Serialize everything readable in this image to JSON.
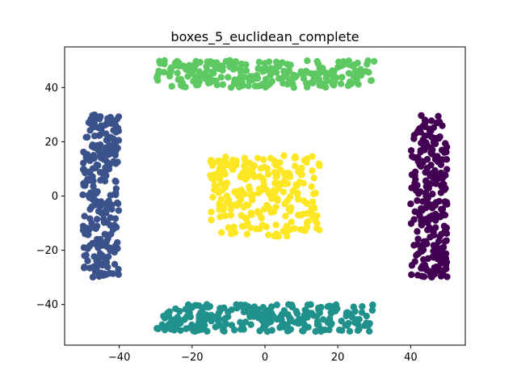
{
  "chart_data": {
    "type": "scatter",
    "title": "boxes_5_euclidean_complete",
    "xlabel": "",
    "ylabel": "",
    "xlim": [
      -55,
      55
    ],
    "ylim": [
      -55,
      55
    ],
    "x_ticks": [
      -40,
      -20,
      0,
      20,
      40
    ],
    "y_ticks": [
      -40,
      -20,
      0,
      20,
      40
    ],
    "x_tick_labels": [
      "−40",
      "−20",
      "0",
      "20",
      "40"
    ],
    "y_tick_labels": [
      "−40",
      "−20",
      "0",
      "20",
      "40"
    ],
    "grid": false,
    "point_count_per_cluster": 250,
    "clusters": [
      {
        "name": "right-box",
        "color": "#440154",
        "x_range": [
          40,
          50
        ],
        "y_range": [
          -30,
          30
        ]
      },
      {
        "name": "left-box",
        "color": "#3b528b",
        "x_range": [
          -50,
          -40
        ],
        "y_range": [
          -30,
          30
        ]
      },
      {
        "name": "bottom-box",
        "color": "#21918c",
        "x_range": [
          -30,
          30
        ],
        "y_range": [
          -50,
          -40
        ]
      },
      {
        "name": "top-box",
        "color": "#5ec962",
        "x_range": [
          -30,
          30
        ],
        "y_range": [
          40,
          50
        ]
      },
      {
        "name": "center-box",
        "color": "#fde725",
        "x_range": [
          -15,
          15
        ],
        "y_range": [
          -15,
          15
        ]
      }
    ]
  }
}
